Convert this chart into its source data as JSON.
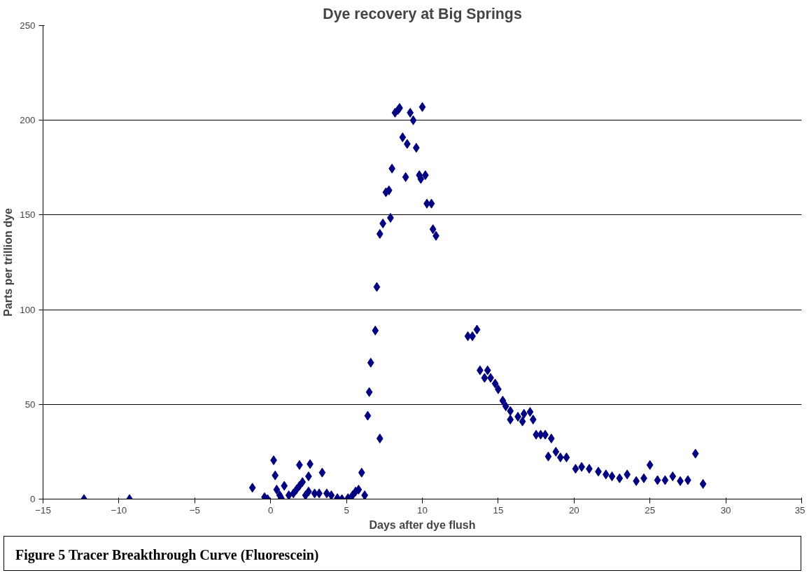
{
  "chart_data": {
    "type": "scatter",
    "title": "Dye recovery at Big Springs",
    "xlabel": "Days after dye flush",
    "ylabel": "Parts per trillion dye",
    "annotations": [
      "Figure 5 Tracer Breakthrough Curve (Fluorescein)"
    ],
    "xlim": [
      -15,
      35
    ],
    "xticks": [
      -15,
      -10,
      -5,
      0,
      5,
      10,
      15,
      20,
      25,
      30,
      35
    ],
    "ylim": [
      0,
      250
    ],
    "yticks": [
      0,
      50,
      100,
      150,
      200,
      250
    ],
    "grid": "y",
    "marker": "diamond",
    "series": [
      {
        "color": "#000080",
        "x": [
          -12.3,
          -9.3,
          -1.2,
          -0.4,
          -0.2,
          0.2,
          0.3,
          0.4,
          0.6,
          0.7,
          0.9,
          1.2,
          1.5,
          1.7,
          1.9,
          1.9,
          2.1,
          2.3,
          2.5,
          2.5,
          2.6,
          2.9,
          3.2,
          3.4,
          3.7,
          4.0,
          4.4,
          4.7,
          5.1,
          5.4,
          5.6,
          5.8,
          6.0,
          6.2,
          6.4,
          6.5,
          6.6,
          6.9,
          7.0,
          7.2,
          7.2,
          7.4,
          7.6,
          7.8,
          7.9,
          8.0,
          8.2,
          8.4,
          8.5,
          8.7,
          8.9,
          9.0,
          9.2,
          9.4,
          9.6,
          9.8,
          9.9,
          10.0,
          10.2,
          10.3,
          10.6,
          10.7,
          10.9,
          13.0,
          13.3,
          13.6,
          13.8,
          14.1,
          14.3,
          14.5,
          14.8,
          15.0,
          15.3,
          15.5,
          15.8,
          15.8,
          16.3,
          16.6,
          16.7,
          17.1,
          17.3,
          17.5,
          17.8,
          18.1,
          18.3,
          18.5,
          18.8,
          19.1,
          19.5,
          20.1,
          20.5,
          21.0,
          21.6,
          22.1,
          22.5,
          23.0,
          23.5,
          24.1,
          24.6,
          25.0,
          25.5,
          26.0,
          26.5,
          27.0,
          27.5,
          28.0,
          28.5
        ],
        "values": [
          0,
          0,
          6,
          1,
          0,
          20.5,
          12.5,
          5,
          2,
          0.5,
          7,
          2,
          3,
          5,
          18,
          7,
          9,
          2,
          4,
          12,
          18.5,
          3,
          3,
          14,
          3,
          2,
          0.5,
          0,
          0.5,
          2,
          4,
          5,
          14,
          2,
          44,
          56.5,
          72,
          89,
          112,
          32,
          140,
          145.5,
          162,
          163,
          148.5,
          174.5,
          204,
          205.5,
          206.5,
          191,
          170,
          187.5,
          204,
          200,
          185.5,
          171,
          169,
          207,
          171,
          156,
          156,
          142.5,
          139,
          86,
          86,
          89.5,
          68,
          64,
          68,
          64,
          61,
          58,
          52,
          49,
          46.5,
          42,
          43.5,
          41,
          45,
          46,
          42,
          34,
          34,
          34,
          22.5,
          32,
          25,
          22,
          22,
          16,
          17,
          16,
          14.5,
          13,
          12,
          11,
          13,
          9.5,
          11,
          18,
          10,
          10,
          12,
          9.5,
          10,
          24,
          8
        ]
      }
    ]
  }
}
